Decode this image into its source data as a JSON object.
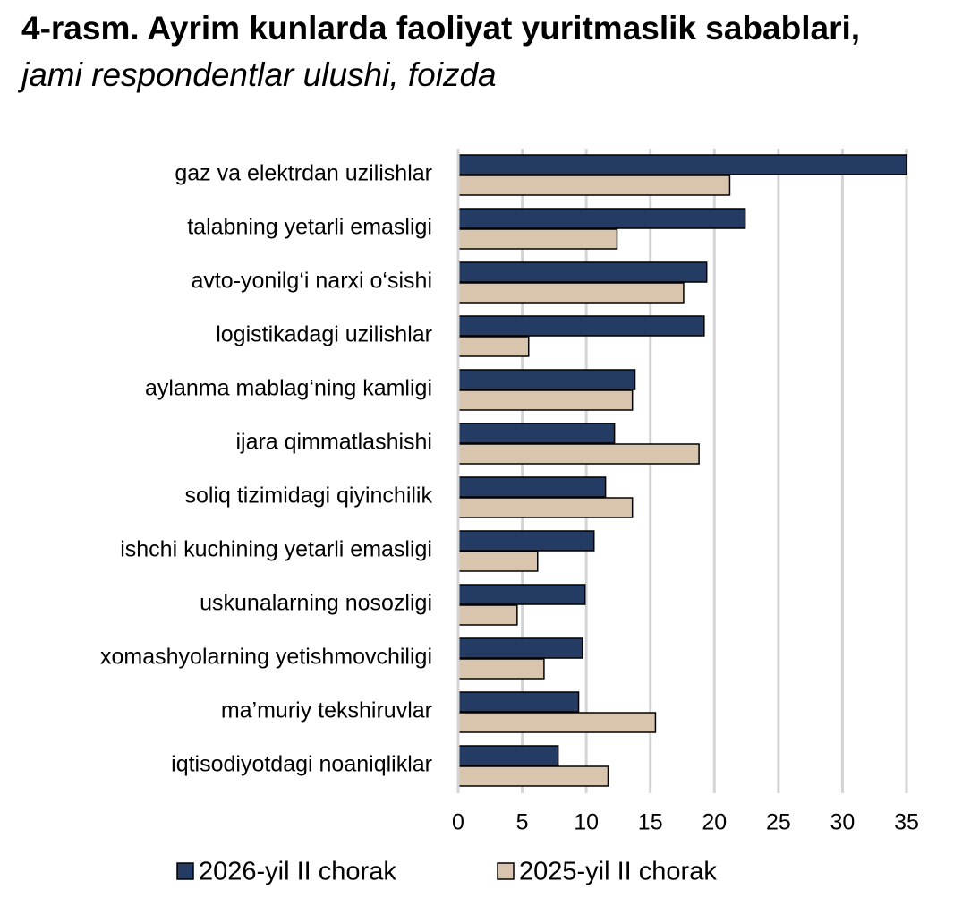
{
  "chart_data": {
    "type": "bar",
    "orientation": "horizontal",
    "title": "4-rasm. Ayrim kunlarda faoliyat yuritmaslik sabablari,",
    "subtitle": "jami respondentlar ulushi, foizda",
    "categories": [
      "gaz va elektrdan uzilishlar",
      "talabning yetarli emasligi",
      "avto-yonilg‘i narxi o‘sishi",
      "logistikadagi uzilishlar",
      "aylanma mablag‘ning kamligi",
      "ijara qimmatlashishi",
      "soliq tizimidagi qiyinchilik",
      "ishchi kuchining yetarli emasligi",
      "uskunalarning nosozligi",
      "xomashyolarning yetishmovchiligi",
      "ma’muriy tekshiruvlar",
      "iqtisodiyotdagi noaniqliklar"
    ],
    "series": [
      {
        "name": "2026-yil II chorak",
        "color": "#243b63",
        "values": [
          35.0,
          22.4,
          19.4,
          19.2,
          13.8,
          12.2,
          11.5,
          10.6,
          9.9,
          9.7,
          9.4,
          7.8
        ]
      },
      {
        "name": "2025-yil II chorak",
        "color": "#d9c5ad",
        "values": [
          21.2,
          12.4,
          17.6,
          5.5,
          13.6,
          18.8,
          13.6,
          6.2,
          4.6,
          6.7,
          15.4,
          11.7
        ]
      }
    ],
    "xlim": [
      0,
      35
    ],
    "xticks": [
      0,
      5,
      10,
      15,
      20,
      25,
      30,
      35
    ],
    "grid": true,
    "legend": "bottom"
  }
}
